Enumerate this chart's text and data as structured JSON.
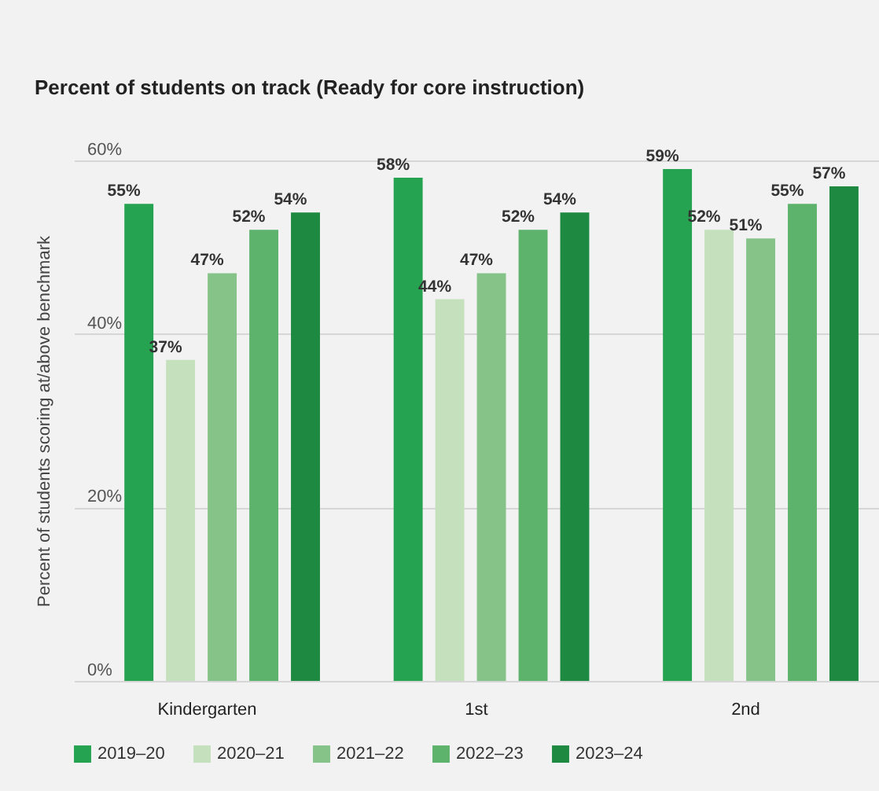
{
  "chart_data": {
    "type": "bar",
    "title": "Percent of students on track (Ready for core instruction)",
    "ylabel": "Percent of students scoring at/above benchmark",
    "categories": [
      "Kindergarten",
      "1st",
      "2nd"
    ],
    "series": [
      {
        "name": "2019–20",
        "color": "#25a350",
        "values": [
          55,
          58,
          59
        ]
      },
      {
        "name": "2020–21",
        "color": "#c4e0bd",
        "values": [
          37,
          44,
          52
        ]
      },
      {
        "name": "2021–22",
        "color": "#86c389",
        "values": [
          47,
          47,
          51
        ]
      },
      {
        "name": "2022–23",
        "color": "#5db36c",
        "values": [
          52,
          52,
          55
        ]
      },
      {
        "name": "2023–24",
        "color": "#1e8940",
        "values": [
          54,
          54,
          57
        ]
      }
    ],
    "ylim": [
      0,
      60
    ],
    "yticks": [
      {
        "value": 0,
        "label": "0%"
      },
      {
        "value": 20,
        "label": "20%"
      },
      {
        "value": 40,
        "label": "40%"
      },
      {
        "value": 60,
        "label": "60%"
      }
    ],
    "value_labels": [
      "55%",
      "58%",
      "59%",
      "37%",
      "44%",
      "52%",
      "47%",
      "47%",
      "51%",
      "52%",
      "52%",
      "55%",
      "54%",
      "54%",
      "57%"
    ],
    "grid": "y",
    "legend": "bottom"
  }
}
